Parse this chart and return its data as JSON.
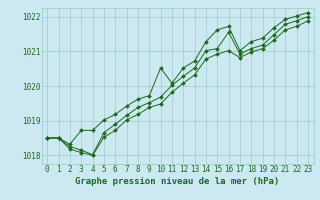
{
  "xlabel": "Graphe pression niveau de la mer (hPa)",
  "background_color": "#cce8f0",
  "grid_color": "#99cccc",
  "line_color": "#1a6b1a",
  "marker_color": "#1a6b1a",
  "text_color": "#1a6b1a",
  "x": [
    0,
    1,
    2,
    3,
    4,
    5,
    6,
    7,
    8,
    9,
    10,
    11,
    12,
    13,
    14,
    15,
    16,
    17,
    18,
    19,
    20,
    21,
    22,
    23
  ],
  "y_avg": [
    1018.5,
    1018.5,
    1018.25,
    1018.15,
    1018.02,
    1018.65,
    1018.9,
    1019.15,
    1019.38,
    1019.52,
    1019.68,
    1020.02,
    1020.28,
    1020.52,
    1021.02,
    1021.08,
    1021.55,
    1020.92,
    1021.08,
    1021.18,
    1021.48,
    1021.78,
    1021.88,
    1022.0
  ],
  "y_min": [
    1018.5,
    1018.5,
    1018.18,
    1018.08,
    1018.0,
    1018.52,
    1018.72,
    1019.02,
    1019.18,
    1019.38,
    1019.48,
    1019.82,
    1020.08,
    1020.32,
    1020.78,
    1020.92,
    1021.02,
    1020.82,
    1020.98,
    1021.08,
    1021.32,
    1021.62,
    1021.72,
    1021.88
  ],
  "y_max": [
    1018.5,
    1018.5,
    1018.32,
    1018.72,
    1018.72,
    1019.02,
    1019.18,
    1019.42,
    1019.62,
    1019.72,
    1020.52,
    1020.08,
    1020.52,
    1020.72,
    1021.28,
    1021.62,
    1021.72,
    1021.02,
    1021.28,
    1021.38,
    1021.68,
    1021.92,
    1022.02,
    1022.12
  ],
  "ylim": [
    1017.75,
    1022.25
  ],
  "yticks": [
    1018,
    1019,
    1020,
    1021,
    1022
  ],
  "xlim": [
    -0.5,
    23.5
  ],
  "tick_fontsize": 5.5,
  "xlabel_fontsize": 6.5,
  "lw": 0.7,
  "ms": 2.0
}
